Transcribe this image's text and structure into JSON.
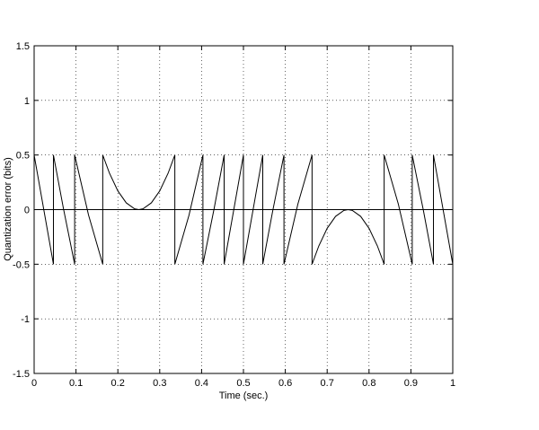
{
  "chart_data": {
    "type": "line",
    "xlabel": "Time (sec.)",
    "ylabel": "Quantization error (bits)",
    "xlim": [
      0,
      1
    ],
    "ylim": [
      -1.5,
      1.5
    ],
    "xticks": [
      0,
      0.1,
      0.2,
      0.3,
      0.4,
      0.5,
      0.6,
      0.7,
      0.8,
      0.9,
      1
    ],
    "yticks": [
      -1.5,
      -1,
      -0.5,
      0,
      0.5,
      1,
      1.5
    ],
    "grid": true,
    "series": [
      {
        "color": "#000000",
        "x": [
          0,
          0.04612,
          0.04612,
          0.07,
          0.0968,
          0.0968,
          0.13,
          0.16388,
          0.16388,
          0.18,
          0.2,
          0.22,
          0.24,
          0.25,
          0.26,
          0.28,
          0.3,
          0.32,
          0.33612,
          0.33612,
          0.37,
          0.4032,
          0.4032,
          0.43,
          0.45388,
          0.45388,
          0.5,
          0.5,
          0.54612,
          0.54612,
          0.57,
          0.5968,
          0.5968,
          0.63,
          0.66388,
          0.66388,
          0.68,
          0.7,
          0.72,
          0.74,
          0.75,
          0.76,
          0.78,
          0.8,
          0.82,
          0.83612,
          0.83612,
          0.87,
          0.9032,
          0.9032,
          0.93,
          0.95388,
          0.95388,
          1
        ],
        "values": [
          0.5,
          -0.5,
          0.5,
          0.01,
          -0.5,
          0.5,
          -0.05,
          -0.5,
          0.5,
          0.333,
          0.171,
          0.062,
          0.007,
          0,
          0.007,
          0.062,
          0.171,
          0.333,
          0.5,
          -0.5,
          -0.05,
          0.5,
          -0.5,
          0.01,
          0.5,
          -0.5,
          0.5,
          -0.5,
          0.5,
          -0.5,
          -0.01,
          0.5,
          -0.5,
          0.05,
          0.5,
          -0.5,
          -0.333,
          -0.171,
          -0.062,
          -0.007,
          0,
          -0.007,
          -0.062,
          -0.171,
          -0.333,
          -0.5,
          0.5,
          0.05,
          -0.5,
          0.5,
          -0.01,
          -0.5,
          0.5,
          -0.5
        ]
      },
      {
        "color": "#000000",
        "x": [
          0,
          1
        ],
        "values": [
          0,
          0
        ]
      }
    ]
  }
}
